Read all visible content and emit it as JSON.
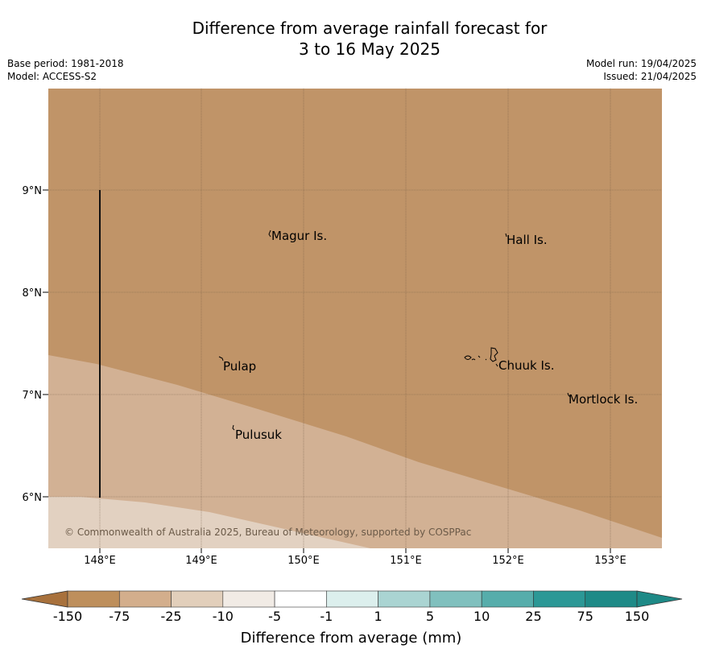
{
  "title": {
    "line1": "Difference from average rainfall forecast for",
    "line2": "3 to 16 May 2025"
  },
  "meta": {
    "base_period": "Base period: 1981-2018",
    "model": "Model: ACCESS-S2",
    "model_run": "Model run: 19/04/2025",
    "issued": "Issued: 21/04/2025"
  },
  "map": {
    "lon_labels": [
      "148°E",
      "149°E",
      "150°E",
      "151°E",
      "152°E",
      "153°E"
    ],
    "lat_labels": [
      "9°N",
      "8°N",
      "7°N",
      "6°N"
    ],
    "places": [
      "Magur Is.",
      "Hall Is.",
      "Pulap",
      "Chuuk Is.",
      "Mortlock Is.",
      "Pulusuk"
    ],
    "copyright": "© Commonwealth of Australia 2025, Bureau of Meteorology, supported by COSPPac"
  },
  "colorbar": {
    "boundaries": [
      "-150",
      "-75",
      "-25",
      "-10",
      "-5",
      "-1",
      "1",
      "5",
      "10",
      "25",
      "75",
      "150"
    ],
    "colors": [
      "#a8713c",
      "#be8f5c",
      "#d3ae8c",
      "#e2cfbb",
      "#f1ebe5",
      "#ffffff",
      "#dcefed",
      "#aad4d2",
      "#80c0be",
      "#56adab",
      "#2c9896",
      "#1e8a87"
    ],
    "title": "Difference from average (mm)"
  },
  "colors": {
    "region_dry": "#c09468",
    "region_mid": "#d2b194",
    "region_light": "#e2d1c1"
  }
}
